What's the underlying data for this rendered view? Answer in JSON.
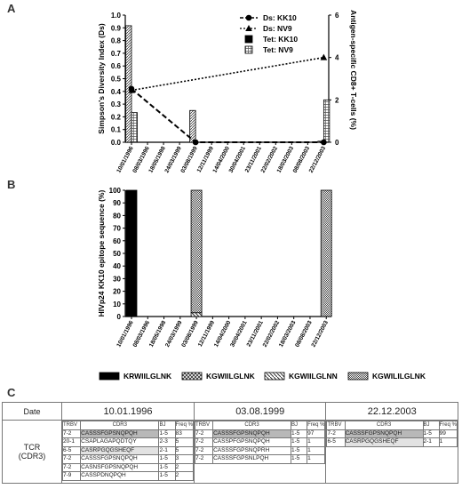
{
  "panels": {
    "a": "A",
    "b": "B",
    "c": "C"
  },
  "chart_data": [
    {
      "type": "bar+line",
      "panel": "A",
      "categories": [
        "10/01/1996",
        "08/03/1996",
        "18/05/1998",
        "24/03/1999",
        "03/08/1999",
        "12/11/1999",
        "14/04/2000",
        "30/04/2001",
        "23/11/2001",
        "22/02/2002",
        "18/03/2003",
        "08/08/2003",
        "22/12/2003"
      ],
      "ylabel": "Simpson's Diversity Index (Ds)",
      "y2label": "Antigen-specific CD8+ T-cells (%)",
      "ylim": [
        0,
        1.0
      ],
      "yticks": [
        "0.0",
        "0.1",
        "0.2",
        "0.3",
        "0.4",
        "0.5",
        "0.6",
        "0.7",
        "0.8",
        "0.9",
        "1.0"
      ],
      "y2lim": [
        0,
        6
      ],
      "y2ticks": [
        "0",
        "2",
        "4",
        "6"
      ],
      "legend": [
        "Ds: KK10",
        "Ds: NV9",
        "Tet: KK10",
        "Tet: NV9"
      ],
      "legend_position": "top-right",
      "series": [
        {
          "name": "Ds: KK10",
          "kind": "line",
          "style": "dashed",
          "marker": "circle",
          "axis": "left",
          "points": [
            {
              "x": 0,
              "y": 0.42
            },
            {
              "x": 4,
              "y": 0.0
            },
            {
              "x": 12,
              "y": 0.0
            }
          ]
        },
        {
          "name": "Ds: NV9",
          "kind": "line",
          "style": "dotted",
          "marker": "triangle",
          "axis": "right",
          "points": [
            {
              "x": 0,
              "y": 2.45
            },
            {
              "x": 12,
              "y": 4.0
            }
          ]
        },
        {
          "name": "Tet: KK10",
          "kind": "bar",
          "pattern": "hatch",
          "axis": "right",
          "points": [
            {
              "x": 0,
              "y": 5.5
            },
            {
              "x": 4,
              "y": 1.5
            },
            {
              "x": 12,
              "y": 0.05
            }
          ]
        },
        {
          "name": "Tet: NV9",
          "kind": "bar",
          "pattern": "grid",
          "axis": "right",
          "points": [
            {
              "x": 0,
              "y": 1.4
            },
            {
              "x": 12,
              "y": 2.0
            }
          ]
        }
      ]
    },
    {
      "type": "stacked_bar",
      "panel": "B",
      "categories": [
        "10/01/1996",
        "08/03/1996",
        "18/05/1998",
        "24/03/1999",
        "03/08/1999",
        "12/11/1999",
        "14/04/2000",
        "30/04/2001",
        "23/11/2001",
        "22/02/2002",
        "18/03/2003",
        "08/08/2003",
        "22/12/2003"
      ],
      "ylabel": "HIVp24 KK10 epitope sequence (%)",
      "ylim": [
        0,
        100
      ],
      "yticks": [
        "0",
        "10",
        "20",
        "30",
        "40",
        "50",
        "60",
        "70",
        "80",
        "90",
        "100"
      ],
      "legend_position": "bottom",
      "series": [
        {
          "name": "KRWIILGLNK",
          "pattern": "solid",
          "values": [
            100,
            0,
            0,
            0,
            0,
            0,
            0,
            0,
            0,
            0,
            0,
            0,
            0
          ]
        },
        {
          "name": "KGWIILGLNK",
          "pattern": "cross",
          "values": [
            0,
            0,
            0,
            0,
            0,
            0,
            0,
            0,
            0,
            0,
            0,
            0,
            0
          ]
        },
        {
          "name": "KGWIILGLNN",
          "pattern": "diag",
          "values": [
            0,
            0,
            0,
            0,
            3,
            0,
            0,
            0,
            0,
            0,
            0,
            0,
            0
          ]
        },
        {
          "name": "KGWILILGLNK",
          "pattern": "check",
          "values": [
            0,
            0,
            0,
            0,
            97,
            0,
            0,
            0,
            0,
            0,
            0,
            0,
            100
          ]
        }
      ]
    }
  ],
  "tcr_table": {
    "date_label": "Date",
    "row_label_1": "TCR",
    "row_label_2": "(CDR3)",
    "col_headers": {
      "trbv": "TRBV",
      "cdr3": "CDR3",
      "bj": "BJ",
      "freq": "Freq %"
    },
    "dates": [
      {
        "date": "10.01.1996",
        "rows": [
          {
            "trbv": "7-2",
            "cdr3": "CASSSFGPSNQPQH",
            "bj": "1-5",
            "freq": "83",
            "hl": "dark"
          },
          {
            "trbv": "20-1",
            "cdr3": "CSAPLAGAPQDTQY",
            "bj": "2-3",
            "freq": "5",
            "hl": ""
          },
          {
            "trbv": "6-5",
            "cdr3": "CASRPGQGSHEQF",
            "bj": "2-1",
            "freq": "5",
            "hl": "light"
          },
          {
            "trbv": "7-2",
            "cdr3": "CASSSFGPSNQPQH",
            "bj": "1-5",
            "freq": "3",
            "hl": ""
          },
          {
            "trbv": "7-2",
            "cdr3": "CASNSFGPSNQPQH",
            "bj": "1-5",
            "freq": "2",
            "hl": ""
          },
          {
            "trbv": "7-9",
            "cdr3": "CASSPDNQPQH",
            "bj": "1-5",
            "freq": "2",
            "hl": ""
          }
        ]
      },
      {
        "date": "03.08.1999",
        "rows": [
          {
            "trbv": "7-2",
            "cdr3": "CASSSFGPSNQPQH",
            "bj": "1-5",
            "freq": "97",
            "hl": "dark"
          },
          {
            "trbv": "7-2",
            "cdr3": "CASSPFGPSNQPQH",
            "bj": "1-5",
            "freq": "1",
            "hl": ""
          },
          {
            "trbv": "7-2",
            "cdr3": "CASSSFGPSNQPRH",
            "bj": "1-5",
            "freq": "1",
            "hl": ""
          },
          {
            "trbv": "7-2",
            "cdr3": "CASSSFGPSNLPQH",
            "bj": "1-5",
            "freq": "1",
            "hl": ""
          }
        ]
      },
      {
        "date": "22.12.2003",
        "rows": [
          {
            "trbv": "7-2",
            "cdr3": "CASSSFGPSNQPQH",
            "bj": "1-5",
            "freq": "99",
            "hl": "dark"
          },
          {
            "trbv": "6-5",
            "cdr3": "CASRPGQGSHEQF",
            "bj": "2-1",
            "freq": "1",
            "hl": "light"
          }
        ]
      }
    ]
  }
}
